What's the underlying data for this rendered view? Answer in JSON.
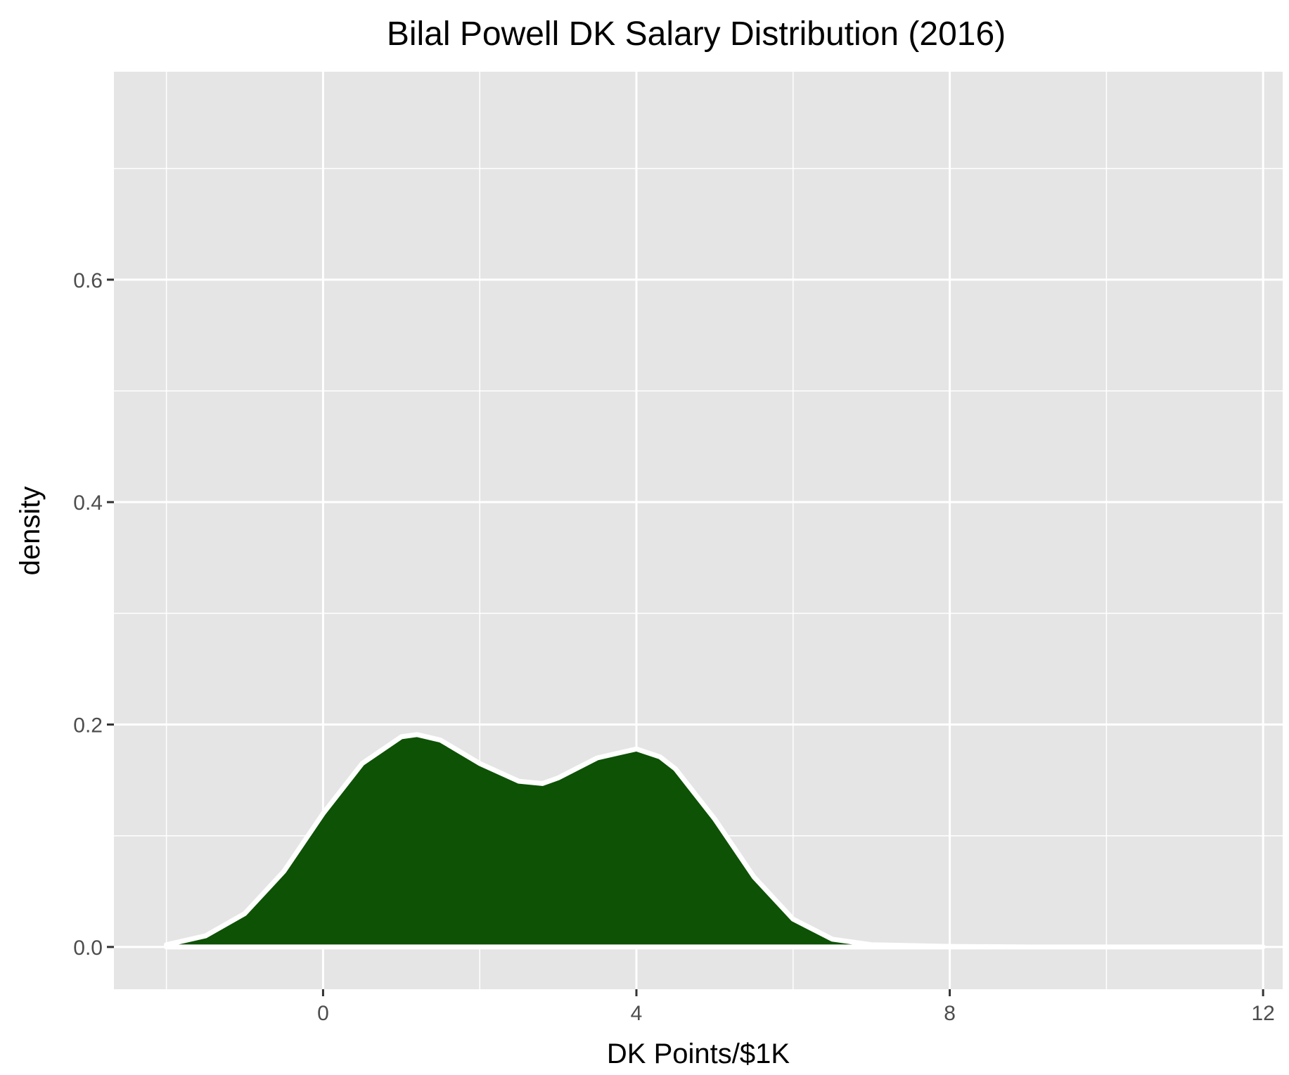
{
  "chart_data": {
    "type": "area",
    "title": "Bilal Powell DK Salary Distribution (2016)",
    "xlabel": "DK Points/$1K",
    "ylabel": "density",
    "xlim": [
      -2.67,
      12.25
    ],
    "ylim": [
      -0.038,
      0.787
    ],
    "x_ticks": [
      {
        "value": 0,
        "label": "0"
      },
      {
        "value": 4,
        "label": "4"
      },
      {
        "value": 8,
        "label": "8"
      },
      {
        "value": 12,
        "label": "12"
      }
    ],
    "y_ticks": [
      {
        "value": 0.0,
        "label": "0.0"
      },
      {
        "value": 0.2,
        "label": "0.2"
      },
      {
        "value": 0.4,
        "label": "0.4"
      },
      {
        "value": 0.6,
        "label": "0.6"
      }
    ],
    "x_minor": [
      -2,
      2,
      6,
      10
    ],
    "y_minor": [
      0.1,
      0.3,
      0.5,
      0.7
    ],
    "grid": true,
    "legend": "none",
    "series": [
      {
        "fill": "#0d5205",
        "outline": "#ffffff",
        "x": [
          -2.0,
          -1.5,
          -1.0,
          -0.5,
          0.0,
          0.5,
          1.0,
          1.2,
          1.5,
          2.0,
          2.5,
          2.8,
          3.0,
          3.5,
          4.0,
          4.3,
          4.5,
          5.0,
          5.5,
          6.0,
          6.5,
          7.0,
          8.0,
          9.0,
          10.0,
          11.0,
          12.0
        ],
        "y": [
          0.002,
          0.01,
          0.03,
          0.068,
          0.12,
          0.165,
          0.189,
          0.191,
          0.186,
          0.165,
          0.149,
          0.147,
          0.152,
          0.17,
          0.178,
          0.171,
          0.16,
          0.115,
          0.063,
          0.025,
          0.007,
          0.002,
          0.0005,
          0.0,
          0.0,
          0.0,
          0.0
        ]
      }
    ]
  }
}
